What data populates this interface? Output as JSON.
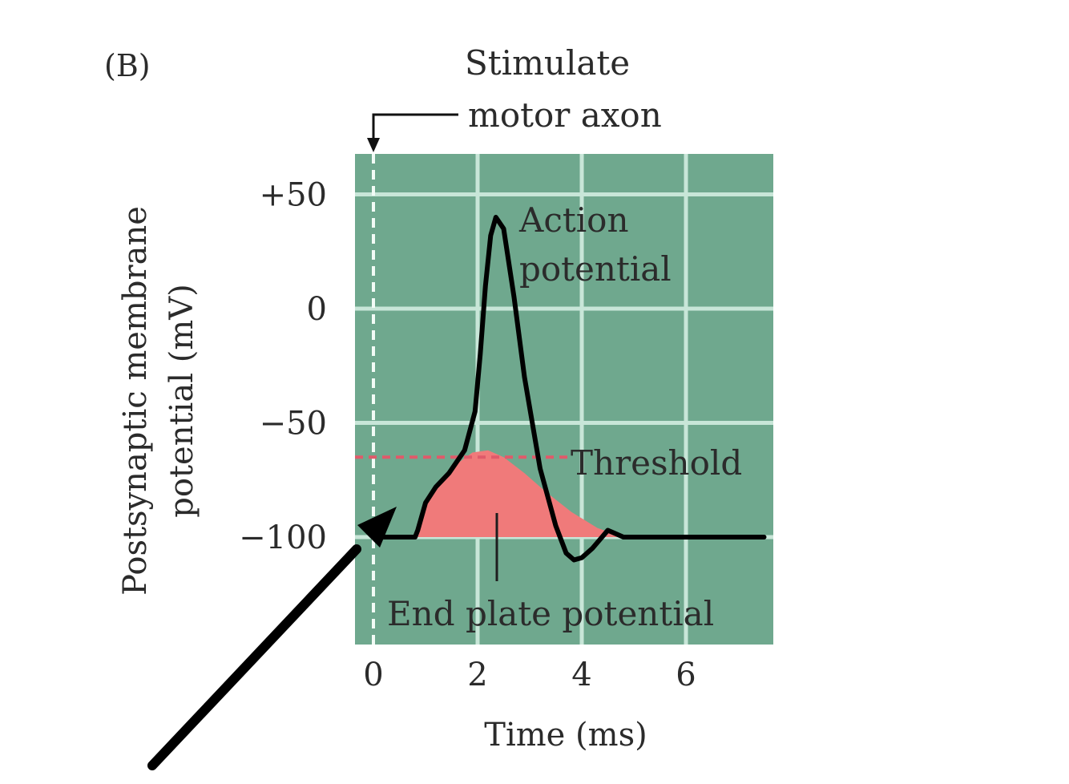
{
  "panel_label": "(B)",
  "colors": {
    "plot_bg": "#6fa88e",
    "grid": "#c8e6d8",
    "trace": "#000000",
    "epp_fill": "#f07a7a",
    "threshold": "#e05a6a",
    "text": "#2b2b2b"
  },
  "chart_data": {
    "type": "line",
    "xlabel": "Time (ms)",
    "ylabel_lines": [
      "Postsynaptic membrane",
      "potential (mV)"
    ],
    "xlim": [
      0,
      7.5
    ],
    "ylim": [
      -145,
      70
    ],
    "x_ticks": [
      {
        "value": 0,
        "label": "0"
      },
      {
        "value": 2,
        "label": "2"
      },
      {
        "value": 4,
        "label": "4"
      },
      {
        "value": 6,
        "label": "6"
      }
    ],
    "y_ticks": [
      {
        "value": 50,
        "label": "+50"
      },
      {
        "value": 0,
        "label": "0"
      },
      {
        "value": -50,
        "label": "−50"
      },
      {
        "value": -100,
        "label": "−100"
      }
    ],
    "grid": true,
    "threshold": {
      "value": -65,
      "label": "Threshold"
    },
    "stimulus": {
      "time": 0,
      "label_lines": [
        "Stimulate",
        "motor axon"
      ]
    },
    "series": [
      {
        "name": "Action potential",
        "label_lines": [
          "Action",
          "potential"
        ],
        "x": [
          0,
          0.8,
          0.85,
          1.0,
          1.2,
          1.45,
          1.75,
          1.95,
          2.05,
          2.15,
          2.25,
          2.35,
          2.5,
          2.7,
          2.9,
          3.2,
          3.5,
          3.7,
          3.85,
          4.0,
          4.2,
          4.5,
          4.8,
          5.0,
          7.5
        ],
        "y": [
          -100,
          -100,
          -97,
          -85,
          -78,
          -72,
          -62,
          -45,
          -20,
          10,
          32,
          40,
          35,
          5,
          -30,
          -70,
          -95,
          -107,
          -110,
          -109,
          -105,
          -97,
          -100,
          -100,
          -100
        ]
      },
      {
        "name": "End plate potential",
        "label": "End plate potential",
        "x": [
          0.85,
          1.0,
          1.3,
          1.6,
          1.9,
          2.2,
          2.5,
          2.9,
          3.3,
          3.8,
          4.3,
          4.8
        ],
        "y": [
          -100,
          -86,
          -75,
          -68,
          -63,
          -62,
          -65,
          -72,
          -80,
          -89,
          -96,
          -100
        ]
      }
    ]
  }
}
